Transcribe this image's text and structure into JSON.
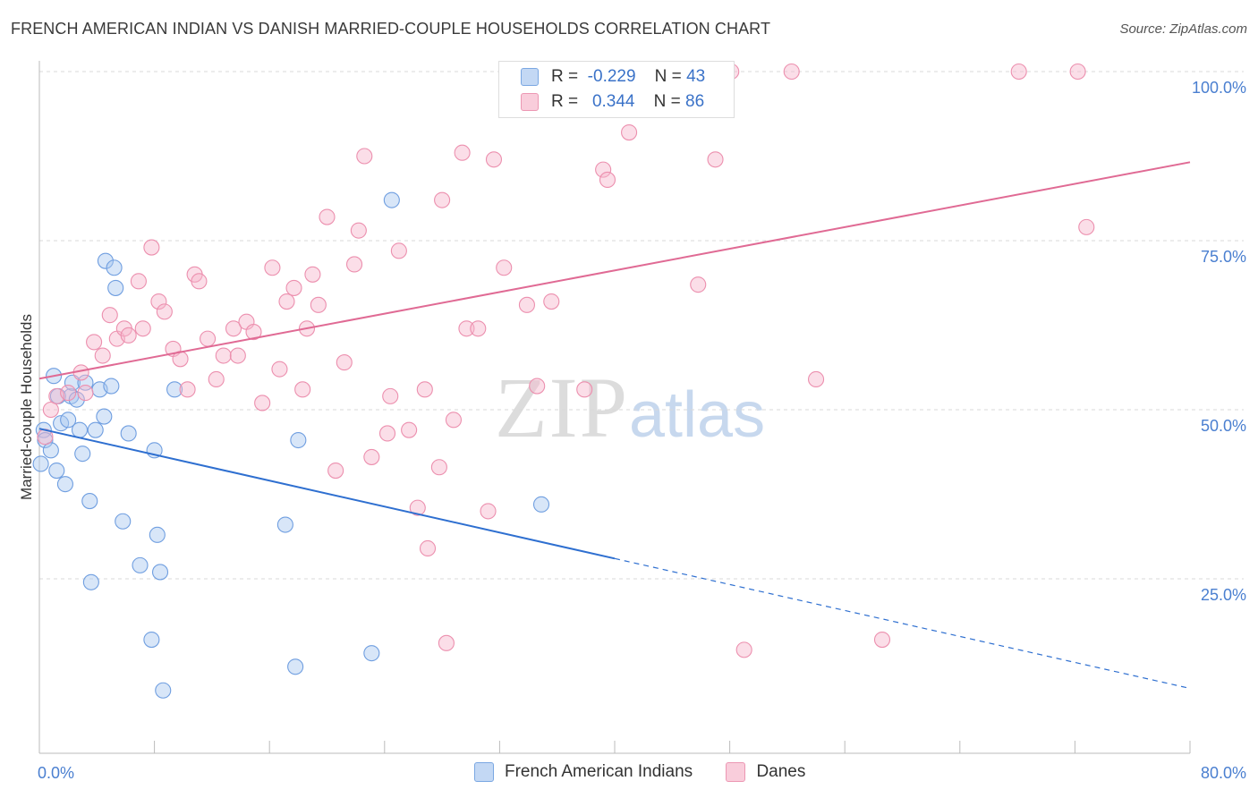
{
  "title": "FRENCH AMERICAN INDIAN VS DANISH MARRIED-COUPLE HOUSEHOLDS CORRELATION CHART",
  "source": "Source: ZipAtlas.com",
  "watermark": {
    "zip": "ZIP",
    "atlas": "atlas"
  },
  "legend": {
    "rows": [
      {
        "r_label": "R =",
        "r_value": "-0.229",
        "n_label": "N =",
        "n_value": "43",
        "color": "#a9c7f0"
      },
      {
        "r_label": "R =",
        "r_value": "0.344",
        "n_label": "N =",
        "n_value": "86",
        "color": "#f6b6cb"
      }
    ]
  },
  "bottom_legend": [
    {
      "label": "French American Indians",
      "color": "#a9c7f0"
    },
    {
      "label": "Danes",
      "color": "#f6b6cb"
    }
  ],
  "chart_data": {
    "type": "scatter",
    "title": "FRENCH AMERICAN INDIAN VS DANISH MARRIED-COUPLE HOUSEHOLDS CORRELATION CHART",
    "xlabel": "",
    "ylabel": "Married-couple Households",
    "xlim": [
      0,
      80
    ],
    "ylim": [
      0,
      105
    ],
    "x_tick_labels": [
      {
        "value": 0,
        "label": "0.0%"
      },
      {
        "value": 80,
        "label": "80.0%"
      }
    ],
    "y_tick_labels": [
      {
        "value": 25,
        "label": "25.0%"
      },
      {
        "value": 50,
        "label": "50.0%"
      },
      {
        "value": 75,
        "label": "75.0%"
      },
      {
        "value": 100,
        "label": "100.0%"
      }
    ],
    "grid": "horizontal dashed",
    "series": [
      {
        "name": "French American Indians",
        "color": "#a9c7f0",
        "stroke": "#6f9ee0",
        "trend": {
          "x0": 0,
          "y0": 47.2,
          "x1": 40,
          "y1": 28.0,
          "dashed_to_x": 80,
          "dashed_to_y": 8.8,
          "color": "#2e6fd0"
        },
        "points": [
          [
            0.1,
            42
          ],
          [
            0.3,
            47
          ],
          [
            0.4,
            45.5
          ],
          [
            0.8,
            44
          ],
          [
            1.0,
            55
          ],
          [
            1.2,
            41
          ],
          [
            1.3,
            52
          ],
          [
            1.5,
            48
          ],
          [
            1.8,
            39
          ],
          [
            2.0,
            48.5
          ],
          [
            2.2,
            52
          ],
          [
            2.3,
            54
          ],
          [
            2.6,
            51.5
          ],
          [
            2.8,
            47
          ],
          [
            3.0,
            43.5
          ],
          [
            3.2,
            54
          ],
          [
            3.5,
            36.5
          ],
          [
            3.6,
            24.5
          ],
          [
            3.9,
            47
          ],
          [
            4.2,
            53
          ],
          [
            4.5,
            49
          ],
          [
            4.6,
            72
          ],
          [
            5.0,
            53.5
          ],
          [
            5.2,
            71
          ],
          [
            5.3,
            68
          ],
          [
            5.8,
            33.5
          ],
          [
            6.2,
            46.5
          ],
          [
            7.0,
            27
          ],
          [
            7.8,
            16
          ],
          [
            8.0,
            44
          ],
          [
            8.2,
            31.5
          ],
          [
            8.4,
            26
          ],
          [
            8.6,
            8.5
          ],
          [
            9.4,
            53
          ],
          [
            17.1,
            33
          ],
          [
            17.8,
            12
          ],
          [
            18.0,
            45.5
          ],
          [
            23.1,
            14
          ],
          [
            24.5,
            81
          ],
          [
            34.9,
            36
          ]
        ]
      },
      {
        "name": "Danes",
        "color": "#f6b6cb",
        "stroke": "#ec8fae",
        "trend": {
          "x0": 0,
          "y0": 54.6,
          "x1": 80,
          "y1": 86.6,
          "color": "#e06a94"
        },
        "points": [
          [
            0.4,
            46
          ],
          [
            0.8,
            50
          ],
          [
            1.2,
            52
          ],
          [
            2.0,
            52.5
          ],
          [
            2.9,
            55.5
          ],
          [
            3.2,
            52.5
          ],
          [
            3.8,
            60
          ],
          [
            4.4,
            58
          ],
          [
            4.9,
            64
          ],
          [
            5.4,
            60.5
          ],
          [
            5.9,
            62
          ],
          [
            6.2,
            61
          ],
          [
            6.9,
            69
          ],
          [
            7.2,
            62
          ],
          [
            7.8,
            74
          ],
          [
            8.3,
            66
          ],
          [
            8.7,
            64.5
          ],
          [
            9.3,
            59
          ],
          [
            9.8,
            57.5
          ],
          [
            10.3,
            53
          ],
          [
            10.8,
            70
          ],
          [
            11.1,
            69
          ],
          [
            11.7,
            60.5
          ],
          [
            12.3,
            54.5
          ],
          [
            12.8,
            58
          ],
          [
            13.5,
            62
          ],
          [
            13.8,
            58
          ],
          [
            14.4,
            63
          ],
          [
            14.9,
            61.5
          ],
          [
            15.5,
            51
          ],
          [
            16.2,
            71
          ],
          [
            16.7,
            56
          ],
          [
            17.2,
            66
          ],
          [
            17.7,
            68
          ],
          [
            18.3,
            53
          ],
          [
            18.6,
            62
          ],
          [
            19.0,
            70
          ],
          [
            19.4,
            65.5
          ],
          [
            20.6,
            41
          ],
          [
            20.0,
            78.5
          ],
          [
            21.2,
            57
          ],
          [
            21.9,
            71.5
          ],
          [
            22.2,
            76.5
          ],
          [
            22.6,
            87.5
          ],
          [
            23.1,
            43
          ],
          [
            24.2,
            46.5
          ],
          [
            24.4,
            52
          ],
          [
            25.0,
            73.5
          ],
          [
            25.7,
            47
          ],
          [
            26.3,
            35.5
          ],
          [
            26.8,
            53
          ],
          [
            27.0,
            29.5
          ],
          [
            27.8,
            41.5
          ],
          [
            28.0,
            81
          ],
          [
            28.8,
            48.5
          ],
          [
            29.4,
            88
          ],
          [
            29.7,
            62
          ],
          [
            30.5,
            62
          ],
          [
            31.2,
            35
          ],
          [
            31.6,
            87
          ],
          [
            32.3,
            71
          ],
          [
            33.9,
            65.5
          ],
          [
            34.6,
            53.5
          ],
          [
            35.6,
            66
          ],
          [
            36.1,
            94.5
          ],
          [
            37.9,
            53
          ],
          [
            38.8,
            100
          ],
          [
            39.2,
            85.5
          ],
          [
            39.5,
            84
          ],
          [
            41.0,
            91
          ],
          [
            42.5,
            100
          ],
          [
            44.1,
            100
          ],
          [
            45.8,
            68.5
          ],
          [
            47.0,
            87
          ],
          [
            48.1,
            100
          ],
          [
            49.0,
            14.5
          ],
          [
            52.3,
            100
          ],
          [
            54.0,
            54.5
          ],
          [
            58.6,
            16
          ],
          [
            68.1,
            100
          ],
          [
            72.2,
            100
          ],
          [
            72.8,
            77
          ],
          [
            28.3,
            15.5
          ]
        ]
      }
    ]
  }
}
